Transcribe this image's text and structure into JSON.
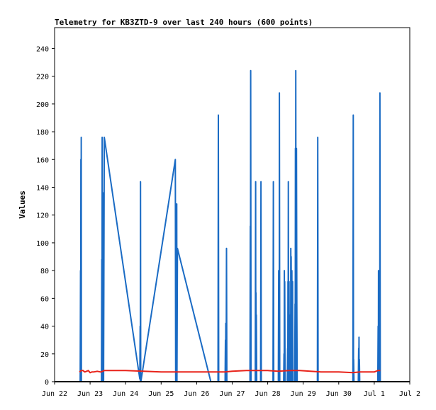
{
  "chart_data": {
    "type": "line",
    "title": "Telemetry for KB3ZTD-9 over last 240 hours (600 points)",
    "xlabel": "",
    "ylabel": "Values",
    "x_tick_labels": [
      "Jun 22",
      "Jun 23",
      "Jun 24",
      "Jun 25",
      "Jun 26",
      "Jun 27",
      "Jun 28",
      "Jun 29",
      "Jun 30",
      "Jul 1",
      "Jul 2"
    ],
    "xlim_days": [
      0,
      10
    ],
    "yticks": [
      0,
      20,
      40,
      60,
      80,
      100,
      120,
      140,
      160,
      180,
      200,
      220,
      240
    ],
    "ylim": [
      0,
      255
    ],
    "grid": false,
    "legend": "none",
    "colors": {
      "series_blue": "#1a6bc4",
      "series_red": "#e8231a",
      "axis": "#000000",
      "background": "#ffffff"
    },
    "series": [
      {
        "color": "#1a6bc4",
        "points": [
          [
            0.72,
            0
          ],
          [
            0.73,
            80
          ],
          [
            0.735,
            0
          ],
          [
            0.74,
            160
          ],
          [
            0.745,
            0
          ],
          [
            0.75,
            176
          ],
          [
            0.755,
            0
          ],
          [
            1.32,
            0
          ],
          [
            1.33,
            88
          ],
          [
            1.335,
            0
          ],
          [
            1.34,
            176
          ],
          [
            1.345,
            0
          ],
          [
            1.36,
            136
          ],
          [
            1.365,
            0
          ],
          [
            1.37,
            48
          ],
          [
            1.38,
            0
          ],
          [
            1.4,
            176
          ],
          [
            2.4,
            2
          ],
          [
            2.41,
            40
          ],
          [
            2.415,
            0
          ],
          [
            2.42,
            144
          ],
          [
            2.425,
            0
          ],
          [
            2.43,
            0
          ],
          [
            3.4,
            160
          ],
          [
            3.41,
            0
          ],
          [
            3.42,
            48
          ],
          [
            3.425,
            0
          ],
          [
            3.44,
            128
          ],
          [
            3.445,
            0
          ],
          [
            3.46,
            96
          ],
          [
            4.4,
            0
          ],
          [
            4.6,
            0
          ],
          [
            4.61,
            192
          ],
          [
            4.62,
            0
          ],
          [
            4.63,
            0
          ],
          [
            4.8,
            0
          ],
          [
            4.81,
            30
          ],
          [
            4.815,
            0
          ],
          [
            4.82,
            42
          ],
          [
            4.83,
            0
          ],
          [
            4.84,
            96
          ],
          [
            4.85,
            0
          ],
          [
            5.5,
            0
          ],
          [
            5.51,
            112
          ],
          [
            5.515,
            0
          ],
          [
            5.52,
            224
          ],
          [
            5.53,
            0
          ],
          [
            5.65,
            0
          ],
          [
            5.66,
            144
          ],
          [
            5.665,
            0
          ],
          [
            5.67,
            64
          ],
          [
            5.675,
            0
          ],
          [
            5.68,
            48
          ],
          [
            5.69,
            0
          ],
          [
            5.8,
            0
          ],
          [
            5.81,
            144
          ],
          [
            5.82,
            0
          ],
          [
            6.15,
            0
          ],
          [
            6.16,
            144
          ],
          [
            6.17,
            0
          ],
          [
            6.3,
            0
          ],
          [
            6.31,
            80
          ],
          [
            6.315,
            0
          ],
          [
            6.32,
            64
          ],
          [
            6.325,
            0
          ],
          [
            6.33,
            208
          ],
          [
            6.34,
            0
          ],
          [
            6.35,
            0
          ],
          [
            6.45,
            0
          ],
          [
            6.46,
            20
          ],
          [
            6.465,
            0
          ],
          [
            6.47,
            80
          ],
          [
            6.475,
            0
          ],
          [
            6.48,
            72
          ],
          [
            6.49,
            0
          ],
          [
            6.55,
            0
          ],
          [
            6.56,
            24
          ],
          [
            6.565,
            0
          ],
          [
            6.57,
            72
          ],
          [
            6.575,
            0
          ],
          [
            6.58,
            144
          ],
          [
            6.59,
            0
          ],
          [
            6.6,
            72
          ],
          [
            6.61,
            0
          ],
          [
            6.63,
            0
          ],
          [
            6.64,
            48
          ],
          [
            6.645,
            0
          ],
          [
            6.65,
            96
          ],
          [
            6.655,
            0
          ],
          [
            6.66,
            90
          ],
          [
            6.67,
            0
          ],
          [
            6.68,
            80
          ],
          [
            6.69,
            0
          ],
          [
            6.7,
            72
          ],
          [
            6.71,
            0
          ],
          [
            6.76,
            0
          ],
          [
            6.77,
            56
          ],
          [
            6.775,
            0
          ],
          [
            6.78,
            168
          ],
          [
            6.785,
            0
          ],
          [
            6.79,
            224
          ],
          [
            6.8,
            0
          ],
          [
            6.81,
            168
          ],
          [
            6.82,
            56
          ],
          [
            6.83,
            0
          ],
          [
            7.4,
            0
          ],
          [
            7.41,
            176
          ],
          [
            7.42,
            0
          ],
          [
            8.4,
            0
          ],
          [
            8.41,
            192
          ],
          [
            8.415,
            0
          ],
          [
            8.42,
            16
          ],
          [
            8.43,
            0
          ],
          [
            8.55,
            0
          ],
          [
            8.56,
            24
          ],
          [
            8.565,
            0
          ],
          [
            8.57,
            32
          ],
          [
            8.575,
            0
          ],
          [
            8.58,
            16
          ],
          [
            8.59,
            0
          ],
          [
            9.1,
            0
          ],
          [
            9.11,
            40
          ],
          [
            9.115,
            0
          ],
          [
            9.12,
            80
          ],
          [
            9.125,
            0
          ],
          [
            9.13,
            40
          ],
          [
            9.135,
            0
          ],
          [
            9.14,
            48
          ],
          [
            9.145,
            0
          ],
          [
            9.15,
            56
          ],
          [
            9.155,
            0
          ],
          [
            9.16,
            208
          ],
          [
            9.17,
            0
          ]
        ]
      },
      {
        "color": "#e8231a",
        "points": [
          [
            0.7,
            7
          ],
          [
            0.75,
            8
          ],
          [
            0.8,
            8
          ],
          [
            0.85,
            7
          ],
          [
            0.9,
            7.5
          ],
          [
            0.95,
            8
          ],
          [
            1.0,
            6.5
          ],
          [
            1.05,
            7
          ],
          [
            1.1,
            7
          ],
          [
            1.2,
            7.5
          ],
          [
            1.3,
            7
          ],
          [
            1.4,
            8
          ],
          [
            1.5,
            8
          ],
          [
            2.0,
            8
          ],
          [
            2.5,
            7.5
          ],
          [
            3.0,
            7
          ],
          [
            3.4,
            7
          ],
          [
            3.6,
            7
          ],
          [
            4.0,
            7
          ],
          [
            4.4,
            7
          ],
          [
            4.8,
            7
          ],
          [
            5.0,
            7.5
          ],
          [
            5.4,
            8
          ],
          [
            5.8,
            8
          ],
          [
            6.0,
            8
          ],
          [
            6.3,
            7.5
          ],
          [
            6.6,
            8
          ],
          [
            6.9,
            8
          ],
          [
            7.2,
            7.5
          ],
          [
            7.5,
            7
          ],
          [
            7.8,
            7
          ],
          [
            8.0,
            7
          ],
          [
            8.4,
            6.5
          ],
          [
            8.6,
            7
          ],
          [
            8.8,
            7
          ],
          [
            9.0,
            7
          ],
          [
            9.1,
            8
          ],
          [
            9.17,
            8
          ]
        ]
      }
    ]
  }
}
